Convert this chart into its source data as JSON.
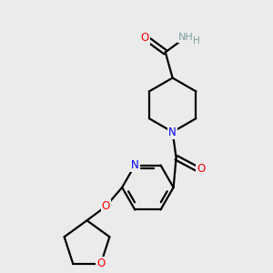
{
  "background_color": "#ebebeb",
  "bond_color": "#000000",
  "nitrogen_color": "#0000ff",
  "oxygen_color": "#ff0000",
  "h_color": "#7f9f9f",
  "font_size": 8.5,
  "linewidth": 1.6,
  "figsize": [
    3.0,
    3.0
  ],
  "dpi": 100,
  "xlim": [
    0,
    300
  ],
  "ylim": [
    0,
    300
  ]
}
